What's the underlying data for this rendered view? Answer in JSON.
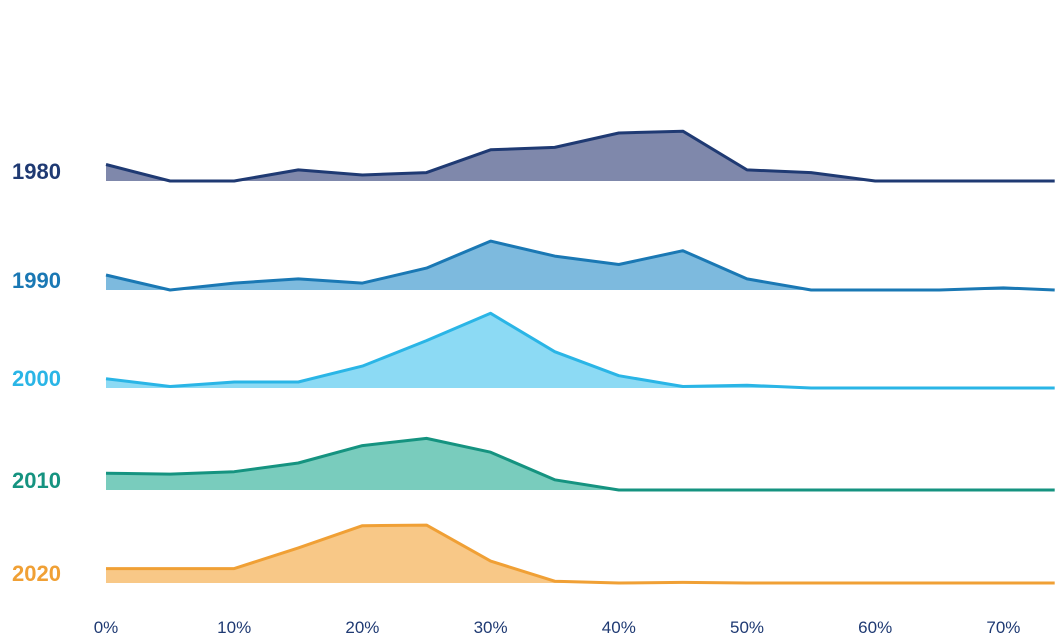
{
  "chart_data": {
    "type": "area",
    "subtype": "ridgeline",
    "x_ticks": [
      "0%",
      "10%",
      "20%",
      "30%",
      "40%",
      "50%",
      "60%",
      "70%"
    ],
    "xlim": [
      0,
      74
    ],
    "x": [
      0,
      5,
      10,
      15,
      20,
      25,
      30,
      35,
      40,
      45,
      50,
      55,
      60,
      65,
      70,
      74
    ],
    "grid": false,
    "legend": "row labels on left",
    "series": [
      {
        "name": "1980",
        "color": "#1f3a73",
        "fill": "#7f88ab",
        "values": [
          0.55,
          0.0,
          0.0,
          0.37,
          0.2,
          0.28,
          1.04,
          1.12,
          1.6,
          1.66,
          0.37,
          0.28,
          0.0,
          0.0,
          0.0,
          0.0
        ]
      },
      {
        "name": "1990",
        "color": "#1a78b4",
        "fill": "#6fb2da",
        "values": [
          0.5,
          0.0,
          0.23,
          0.37,
          0.23,
          0.73,
          1.63,
          1.13,
          0.85,
          1.31,
          0.37,
          0.0,
          0.0,
          0.0,
          0.07,
          0.0
        ]
      },
      {
        "name": "2000",
        "color": "#2ab5e6",
        "fill": "#80d6f3",
        "values": [
          0.31,
          0.05,
          0.2,
          0.2,
          0.73,
          1.58,
          2.49,
          1.21,
          0.41,
          0.05,
          0.09,
          0.0,
          0.0,
          0.0,
          0.0,
          0.0
        ]
      },
      {
        "name": "2010",
        "color": "#159380",
        "fill": "#6ac6b6",
        "values": [
          0.56,
          0.53,
          0.61,
          0.9,
          1.48,
          1.72,
          1.26,
          0.34,
          0.0,
          0.0,
          0.0,
          0.0,
          0.0,
          0.0,
          0.0,
          0.0
        ]
      },
      {
        "name": "2020",
        "color": "#f0a035",
        "fill": "#f7c27a",
        "values": [
          0.48,
          0.48,
          0.48,
          1.17,
          1.91,
          1.93,
          0.73,
          0.06,
          0.0,
          0.02,
          0.0,
          0.0,
          0.0,
          0.0,
          0.0,
          0.0
        ]
      }
    ]
  }
}
